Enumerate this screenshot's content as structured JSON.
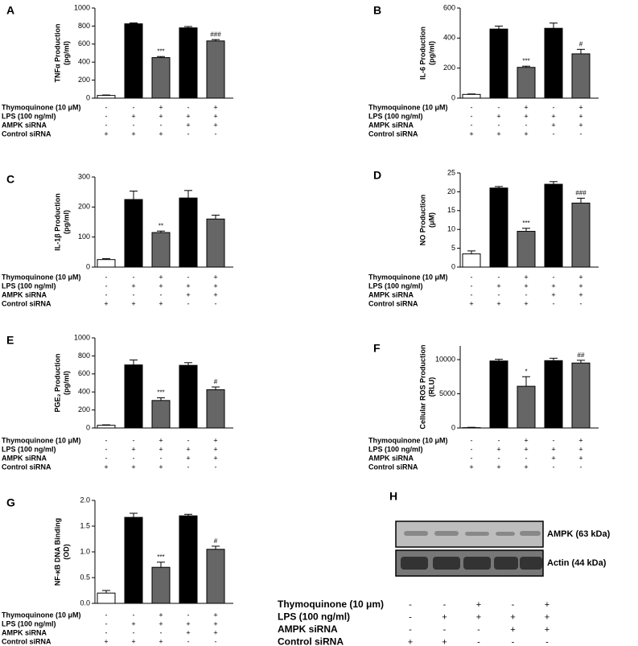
{
  "chart_data": [
    {
      "type": "bar",
      "panel": "A",
      "ylabel": [
        "TNFα Production",
        "(pg/ml)"
      ],
      "values": [
        30,
        825,
        450,
        780,
        635
      ],
      "errors": [
        5,
        10,
        12,
        15,
        15
      ],
      "annotations": [
        null,
        null,
        "***",
        null,
        "###"
      ],
      "colors": [
        "#ffffff",
        "#000000",
        "#666666",
        "#000000",
        "#666666"
      ],
      "ylim": [
        0,
        1000
      ],
      "yticks": [
        0,
        200,
        400,
        600,
        800,
        1000
      ],
      "conditions": [
        {
          "label": "Thymoquinone (10 μM)",
          "signs": [
            "-",
            "-",
            "+",
            "-",
            "+"
          ]
        },
        {
          "label": "LPS (100 ng/ml)",
          "signs": [
            "-",
            "+",
            "+",
            "+",
            "+"
          ]
        },
        {
          "label": "AMPK siRNA",
          "signs": [
            "-",
            "-",
            "-",
            "+",
            "+"
          ]
        },
        {
          "label": "Control siRNA",
          "signs": [
            "+",
            "+",
            "+",
            "-",
            "-"
          ]
        }
      ]
    },
    {
      "type": "bar",
      "panel": "B",
      "ylabel": [
        "IL-6 Production",
        "(pg/ml)"
      ],
      "values": [
        25,
        460,
        205,
        465,
        295
      ],
      "errors": [
        3,
        20,
        8,
        35,
        30
      ],
      "annotations": [
        null,
        null,
        "***",
        null,
        "#"
      ],
      "colors": [
        "#ffffff",
        "#000000",
        "#666666",
        "#000000",
        "#666666"
      ],
      "ylim": [
        0,
        600
      ],
      "yticks": [
        0,
        200,
        400,
        600
      ],
      "conditions": [
        {
          "label": "Thymoquinone (10 μM)",
          "signs": [
            "-",
            "-",
            "+",
            "-",
            "+"
          ]
        },
        {
          "label": "LPS (100 ng/ml)",
          "signs": [
            "-",
            "+",
            "+",
            "+",
            "+"
          ]
        },
        {
          "label": "AMPK siRNA",
          "signs": [
            "-",
            "-",
            "-",
            "+",
            "+"
          ]
        },
        {
          "label": "Control siRNA",
          "signs": [
            "+",
            "+",
            "+",
            "-",
            "-"
          ]
        }
      ]
    },
    {
      "type": "bar",
      "panel": "C",
      "ylabel": [
        "IL-1β Production",
        "(pg/ml)"
      ],
      "values": [
        25,
        225,
        115,
        230,
        160
      ],
      "errors": [
        3,
        28,
        5,
        25,
        13
      ],
      "annotations": [
        null,
        null,
        "**",
        null,
        null
      ],
      "colors": [
        "#ffffff",
        "#000000",
        "#666666",
        "#000000",
        "#666666"
      ],
      "ylim": [
        0,
        300
      ],
      "yticks": [
        0,
        100,
        200,
        300
      ],
      "conditions": [
        {
          "label": "Thymoquinone (10 μM)",
          "signs": [
            "-",
            "-",
            "+",
            "-",
            "+"
          ]
        },
        {
          "label": "LPS (100 ng/ml)",
          "signs": [
            "-",
            "+",
            "+",
            "+",
            "+"
          ]
        },
        {
          "label": "AMPK siRNA",
          "signs": [
            "-",
            "-",
            "-",
            "+",
            "+"
          ]
        },
        {
          "label": "Control siRNA",
          "signs": [
            "+",
            "+",
            "+",
            "-",
            "-"
          ]
        }
      ]
    },
    {
      "type": "bar",
      "panel": "D",
      "ylabel": [
        "NO Production",
        "(μM)"
      ],
      "values": [
        3.5,
        21,
        9.5,
        22,
        17
      ],
      "errors": [
        0.8,
        0.4,
        0.8,
        0.7,
        1.3
      ],
      "annotations": [
        null,
        null,
        "***",
        null,
        "###"
      ],
      "colors": [
        "#ffffff",
        "#000000",
        "#666666",
        "#000000",
        "#666666"
      ],
      "ylim": [
        0,
        25
      ],
      "yticks": [
        0,
        5,
        10,
        15,
        20,
        25
      ],
      "conditions": [
        {
          "label": "Thymoquinone (10 μM)",
          "signs": [
            "-",
            "-",
            "+",
            "-",
            "+"
          ]
        },
        {
          "label": "LPS (100 ng/ml)",
          "signs": [
            "-",
            "+",
            "+",
            "+",
            "+"
          ]
        },
        {
          "label": "AMPK siRNA",
          "signs": [
            "-",
            "-",
            "-",
            "+",
            "+"
          ]
        },
        {
          "label": "Control siRNA",
          "signs": [
            "+",
            "+",
            "+",
            "-",
            "-"
          ]
        }
      ]
    },
    {
      "type": "bar",
      "panel": "E",
      "ylabel": [
        "PGE₂ Production",
        "(pg/ml)"
      ],
      "values": [
        30,
        700,
        305,
        695,
        425
      ],
      "errors": [
        5,
        55,
        30,
        30,
        30
      ],
      "annotations": [
        null,
        null,
        "***",
        null,
        "#"
      ],
      "colors": [
        "#ffffff",
        "#000000",
        "#666666",
        "#000000",
        "#666666"
      ],
      "ylim": [
        0,
        1000
      ],
      "yticks": [
        0,
        200,
        400,
        600,
        800,
        1000
      ],
      "conditions": [
        {
          "label": "Thymoquinone (10 μM)",
          "signs": [
            "-",
            "-",
            "+",
            "-",
            "+"
          ]
        },
        {
          "label": "LPS (100 ng/ml)",
          "signs": [
            "-",
            "+",
            "+",
            "+",
            "+"
          ]
        },
        {
          "label": "AMPK siRNA",
          "signs": [
            "-",
            "-",
            "-",
            "+",
            "+"
          ]
        },
        {
          "label": "Control siRNA",
          "signs": [
            "+",
            "+",
            "+",
            "-",
            "-"
          ]
        }
      ]
    },
    {
      "type": "bar",
      "panel": "F",
      "ylabel": [
        "Cellular ROS Production",
        "(RLU)"
      ],
      "values": [
        50,
        9800,
        6100,
        9850,
        9500
      ],
      "errors": [
        50,
        250,
        1400,
        350,
        400
      ],
      "annotations": [
        null,
        null,
        "*",
        null,
        "##"
      ],
      "colors": [
        "#ffffff",
        "#000000",
        "#666666",
        "#000000",
        "#666666"
      ],
      "ylim": [
        0,
        12000
      ],
      "yticks": [
        0,
        5000,
        10000
      ],
      "conditions": [
        {
          "label": "Thymoquinone (10 μM)",
          "signs": [
            "-",
            "-",
            "+",
            "-",
            "+"
          ]
        },
        {
          "label": "LPS (100 ng/ml)",
          "signs": [
            "-",
            "+",
            "+",
            "+",
            "+"
          ]
        },
        {
          "label": "AMPK siRNA",
          "signs": [
            "-",
            "-",
            "-",
            "+",
            "+"
          ]
        },
        {
          "label": "Control siRNA",
          "signs": [
            "+",
            "+",
            "+",
            "-",
            "-"
          ]
        }
      ]
    },
    {
      "type": "bar",
      "panel": "G",
      "ylabel": [
        "NF-κB DNA Binding",
        "(OD)"
      ],
      "values": [
        0.2,
        1.67,
        0.7,
        1.7,
        1.05
      ],
      "errors": [
        0.05,
        0.08,
        0.1,
        0.03,
        0.06
      ],
      "annotations": [
        null,
        null,
        "***",
        null,
        "#"
      ],
      "colors": [
        "#ffffff",
        "#000000",
        "#666666",
        "#000000",
        "#666666"
      ],
      "ylim": [
        0,
        2
      ],
      "yticks": [
        {
          "value": 0,
          "label": "0.0"
        },
        {
          "value": 0.5,
          "label": "0.5"
        },
        {
          "value": 1,
          "label": "1.0"
        },
        {
          "value": 1.5,
          "label": "1.5"
        },
        {
          "value": 2,
          "label": "2.0"
        }
      ],
      "conditions": [
        {
          "label": "Thymoquinone (10 μM)",
          "signs": [
            "-",
            "-",
            "+",
            "-",
            "+"
          ]
        },
        {
          "label": "LPS (100 ng/ml)",
          "signs": [
            "-",
            "+",
            "+",
            "+",
            "+"
          ]
        },
        {
          "label": "AMPK siRNA",
          "signs": [
            "-",
            "-",
            "-",
            "+",
            "+"
          ]
        },
        {
          "label": "Control siRNA",
          "signs": [
            "+",
            "+",
            "+",
            "-",
            "-"
          ]
        }
      ]
    }
  ],
  "blot": {
    "panel": "H",
    "bands": [
      "AMPK (63 kDa)",
      "Actin (44 kDa)"
    ],
    "conditions": [
      {
        "label": "Thymoquinone  (10 μm)",
        "signs": [
          "-",
          "-",
          "+",
          "-",
          "+"
        ]
      },
      {
        "label": "LPS (100 ng/ml)",
        "signs": [
          "-",
          "+",
          "+",
          "+",
          "+"
        ]
      },
      {
        "label": "AMPK siRNA",
        "signs": [
          "-",
          "-",
          "-",
          "+",
          "+"
        ]
      },
      {
        "label": "Control siRNA",
        "signs": [
          "+",
          "+",
          "-",
          "-",
          "-"
        ]
      }
    ]
  }
}
